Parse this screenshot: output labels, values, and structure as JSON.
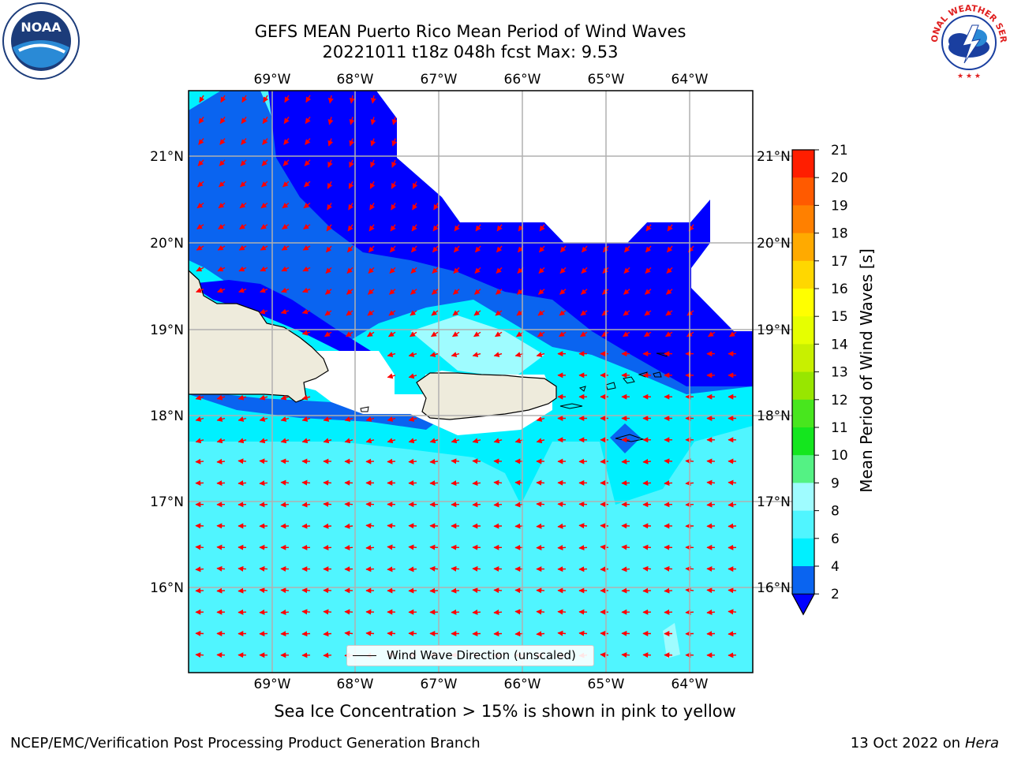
{
  "title_line1": "GEFS MEAN Puerto Rico Mean Period of Wind Waves",
  "title_line2": "20221011 t18z 048h fcst   Max: 9.53",
  "lon_labels": [
    "69°W",
    "68°W",
    "67°W",
    "66°W",
    "65°W",
    "64°W"
  ],
  "lat_labels": [
    "21°N",
    "20°N",
    "19°N",
    "18°N",
    "17°N",
    "16°N"
  ],
  "map": {
    "lon_range": [
      -70,
      -63.25
    ],
    "lat_range": [
      15,
      21.75
    ],
    "land_color": "#eeebdc",
    "arrow_color": "#ff0000"
  },
  "legend": {
    "label": "Wind Wave Direction (unscaled)"
  },
  "colorbar": {
    "label": "Mean Period of Wind Waves [s]",
    "ticks": [
      "2",
      "4",
      "6",
      "8",
      "9",
      "10",
      "11",
      "12",
      "13",
      "14",
      "15",
      "16",
      "17",
      "18",
      "19",
      "20",
      "21"
    ],
    "colors": [
      "#0a64f0",
      "#00f0ff",
      "#50f5ff",
      "#9ffcff",
      "#54f284",
      "#14e61e",
      "#48e61e",
      "#98e600",
      "#c8f000",
      "#e6ff00",
      "#ffff00",
      "#ffd700",
      "#ffaa00",
      "#ff8000",
      "#ff5a00",
      "#ff1e00"
    ],
    "extend_color": "#0000ff"
  },
  "caption": "Sea Ice Concentration > 15% is shown in pink to yellow",
  "footer_left": "NCEP/EMC/Verification Post Processing Product Generation Branch",
  "footer_right_prefix": "13 Oct 2022 on ",
  "footer_right_host": "Hera",
  "logos": {
    "noaa_text": "NOAA",
    "nws_text": "NATIONAL WEATHER SERVICE"
  },
  "colors": {
    "deep_blue": "#0000ff",
    "mid_blue": "#0a64f0",
    "cyan": "#00f0ff",
    "light_cyan": "#50f5ff",
    "pale_cyan": "#9ffcff"
  }
}
